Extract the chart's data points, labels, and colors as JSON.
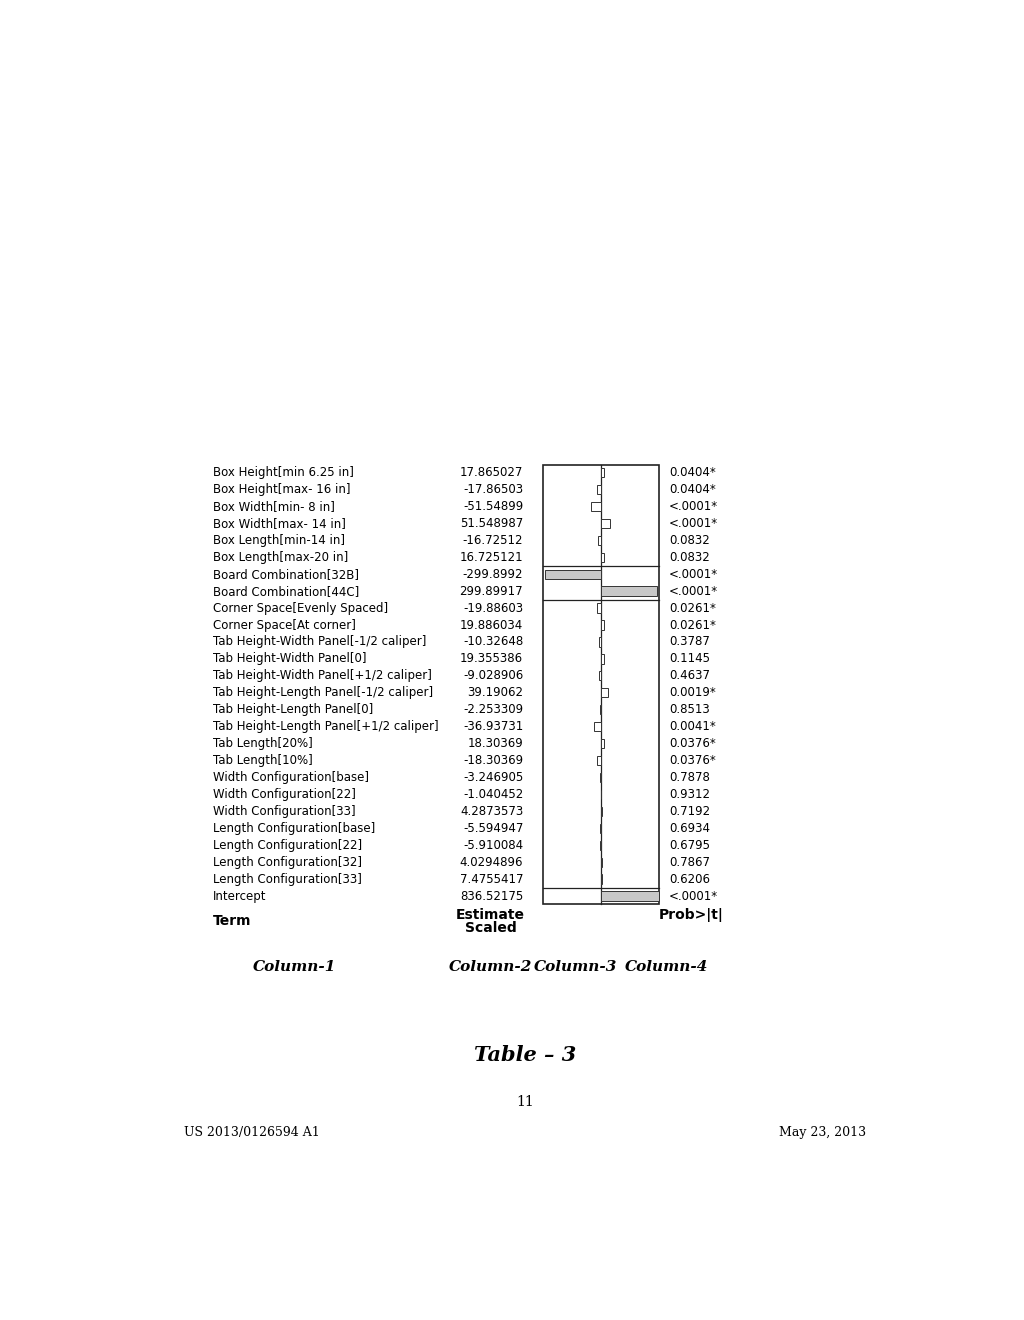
{
  "header_left": "US 2013/0126594 A1",
  "header_right": "May 23, 2013",
  "page_number": "11",
  "table_title": "Table – 3",
  "col_headers": [
    "Column-1",
    "Column-2",
    "Column-3",
    "Column-4"
  ],
  "subheader_term": "Term",
  "subheader_scaled": "Scaled",
  "subheader_estimate": "Estimate",
  "subheader_prob": "Prob>|t|",
  "rows": [
    [
      "Intercept",
      "836.52175",
      "<.0001*"
    ],
    [
      "Length Configuration[33]",
      "7.4755417",
      "0.6206"
    ],
    [
      "Length Configuration[32]",
      "4.0294896",
      "0.7867"
    ],
    [
      "Length Configuration[22]",
      "-5.910084",
      "0.6795"
    ],
    [
      "Length Configuration[base]",
      "-5.594947",
      "0.6934"
    ],
    [
      "Width Configuration[33]",
      "4.2873573",
      "0.7192"
    ],
    [
      "Width Configuration[22]",
      "-1.040452",
      "0.9312"
    ],
    [
      "Width Configuration[base]",
      "-3.246905",
      "0.7878"
    ],
    [
      "Tab Length[10%]",
      "-18.30369",
      "0.0376*"
    ],
    [
      "Tab Length[20%]",
      "18.30369",
      "0.0376*"
    ],
    [
      "Tab Height-Length Panel[+1/2 caliper]",
      "-36.93731",
      "0.0041*"
    ],
    [
      "Tab Height-Length Panel[0]",
      "-2.253309",
      "0.8513"
    ],
    [
      "Tab Height-Length Panel[-1/2 caliper]",
      "39.19062",
      "0.0019*"
    ],
    [
      "Tab Height-Width Panel[+1/2 caliper]",
      "-9.028906",
      "0.4637"
    ],
    [
      "Tab Height-Width Panel[0]",
      "19.355386",
      "0.1145"
    ],
    [
      "Tab Height-Width Panel[-1/2 caliper]",
      "-10.32648",
      "0.3787"
    ],
    [
      "Corner Space[At corner]",
      "19.886034",
      "0.0261*"
    ],
    [
      "Corner Space[Evenly Spaced]",
      "-19.88603",
      "0.0261*"
    ],
    [
      "Board Combination[44C]",
      "299.89917",
      "<.0001*"
    ],
    [
      "Board Combination[32B]",
      "-299.8992",
      "<.0001*"
    ],
    [
      "Box Length[max-20 in]",
      "16.725121",
      "0.0832"
    ],
    [
      "Box Length[min-14 in]",
      "-16.72512",
      "0.0832"
    ],
    [
      "Box Width[max- 14 in]",
      "51.548987",
      "<.0001*"
    ],
    [
      "Box Width[min- 8 in]",
      "-51.54899",
      "<.0001*"
    ],
    [
      "Box Height[max- 16 in]",
      "-17.86503",
      "0.0404*"
    ],
    [
      "Box Height[min 6.25 in]",
      "17.865027",
      "0.0404*"
    ]
  ],
  "bar_values": [
    836.52175,
    7.4755417,
    4.0294896,
    -5.910084,
    -5.594947,
    4.2873573,
    -1.040452,
    -3.246905,
    -18.30369,
    18.30369,
    -36.93731,
    -2.253309,
    39.19062,
    -9.028906,
    19.355386,
    -10.32648,
    19.886034,
    -19.88603,
    299.89917,
    -299.8992,
    16.725121,
    -16.72512,
    51.548987,
    -51.54899,
    -17.86503,
    17.865027
  ],
  "background_color": "#ffffff",
  "text_color": "#000000",
  "gray_fill": "#c8c8c8"
}
